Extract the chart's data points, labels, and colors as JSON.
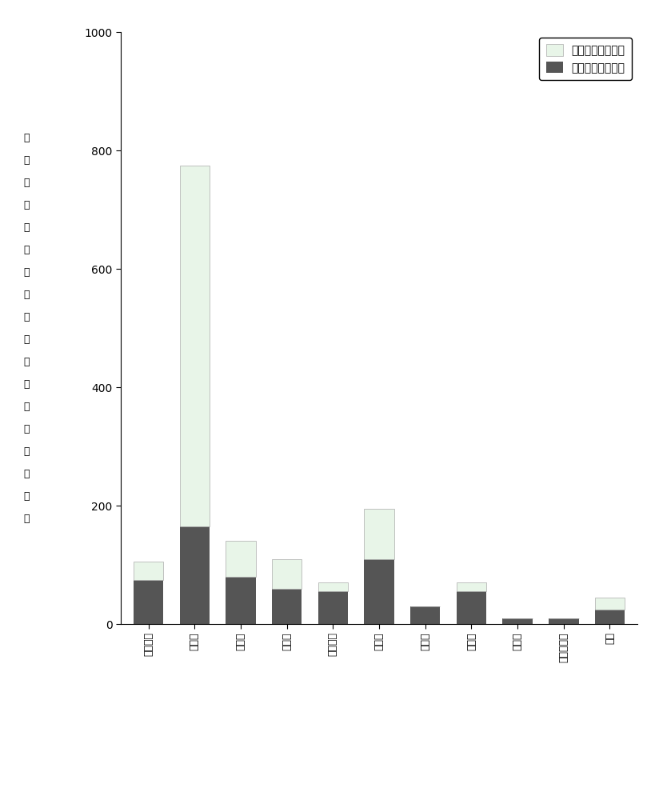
{
  "categories": [
    "细胞骨架",
    "细胞核",
    "内质网",
    "细胞质",
    "高尔基体",
    "线粒体",
    "核内体",
    "细胞膜",
    "溶酶体",
    "细胞外基质",
    "液泡"
  ],
  "specificity_values": [
    30,
    610,
    60,
    50,
    15,
    85,
    0,
    15,
    0,
    0,
    20
  ],
  "multi_values": [
    75,
    165,
    80,
    60,
    55,
    110,
    30,
    55,
    10,
    10,
    25
  ],
  "color_specificity": "#e8f5e8",
  "color_multi": "#555555",
  "legend_specificity": "特异性关键蛋白质",
  "legend_multi": "多定位关键蛋白质",
  "ylabel_chars": [
    "基",
    "于",
    "亚",
    "细",
    "胞",
    "定",
    "位",
    "特",
    "异",
    "性",
    "的",
    "关",
    "键",
    "蛋",
    "白",
    "质",
    "数",
    "量"
  ],
  "ylim": [
    0,
    1000
  ],
  "yticks": [
    0,
    200,
    400,
    600,
    800,
    1000
  ],
  "background_color": "#ffffff",
  "bar_width": 0.65,
  "figsize": [
    8.39,
    10.0
  ],
  "dpi": 100
}
